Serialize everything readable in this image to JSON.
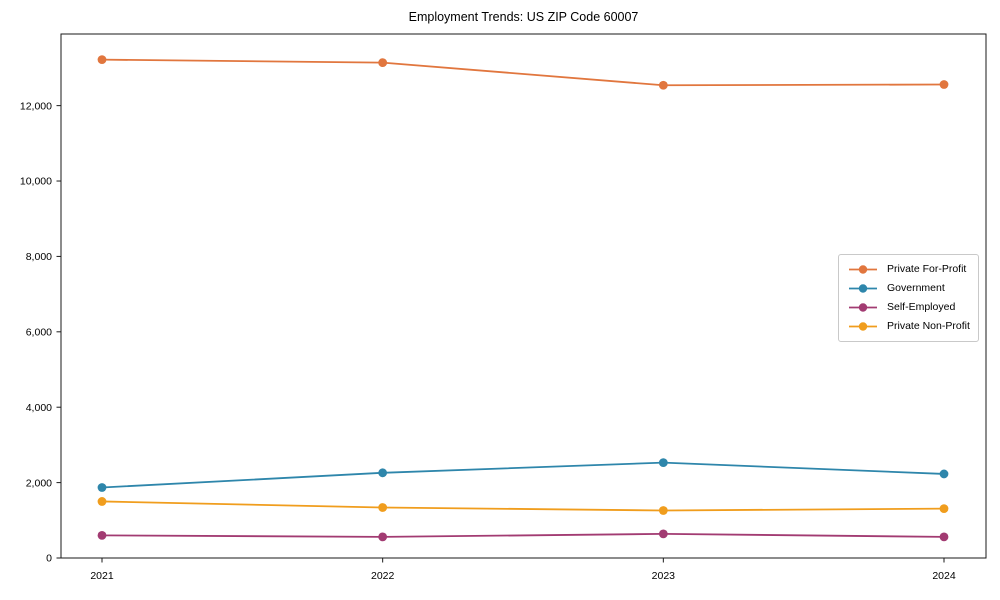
{
  "chart_data": {
    "type": "line",
    "title": "Employment Trends: US ZIP Code 60007",
    "x": [
      2021,
      2022,
      2023,
      2024
    ],
    "x_tick_labels": [
      "2021",
      "2022",
      "2023",
      "2024"
    ],
    "series": [
      {
        "name": "Private For-Profit",
        "color": "#e1763e",
        "values": [
          13220,
          13140,
          12540,
          12560
        ]
      },
      {
        "name": "Government",
        "color": "#2e86ab",
        "values": [
          1870,
          2260,
          2530,
          2230
        ]
      },
      {
        "name": "Self-Employed",
        "color": "#a23b72",
        "values": [
          600,
          560,
          640,
          560
        ]
      },
      {
        "name": "Private Non-Profit",
        "color": "#f09d1d",
        "values": [
          1500,
          1340,
          1260,
          1310
        ]
      }
    ],
    "xlabel": "",
    "ylabel": "",
    "ylim": [
      0,
      13900
    ],
    "yticks": [
      0,
      2000,
      4000,
      6000,
      8000,
      10000,
      12000
    ],
    "ytick_labels": [
      "0",
      "2,000",
      "4,000",
      "6,000",
      "8,000",
      "10,000",
      "12,000"
    ],
    "grid": false,
    "legend_position": "center right",
    "marker": "circle",
    "axis_color": "#1a1a1a",
    "background": "#ffffff"
  }
}
